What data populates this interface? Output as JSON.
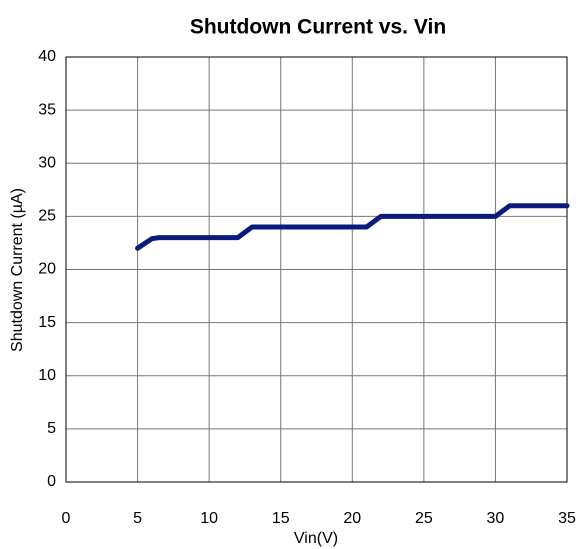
{
  "chart_data": {
    "type": "line",
    "title": "Shutdown Current vs. Vin",
    "x_label": "Vin(V)",
    "y_label": "Shutdown Current (µA)",
    "x": [
      5,
      6,
      6.5,
      11.5,
      12,
      13,
      20.5,
      21,
      22,
      29.5,
      30,
      31,
      35
    ],
    "series": [
      {
        "name": "Shutdown Current",
        "color": "#0b1a7c",
        "values": [
          22,
          22.9,
          23,
          23,
          23,
          24,
          24,
          24,
          25,
          25,
          25,
          26,
          26
        ]
      }
    ],
    "xlim": [
      0,
      35
    ],
    "xticks": [
      0,
      5,
      10,
      15,
      20,
      25,
      30,
      35
    ],
    "ylim": [
      0,
      40
    ],
    "yticks": [
      0,
      5,
      10,
      15,
      20,
      25,
      30,
      35,
      40
    ],
    "grid": true
  }
}
